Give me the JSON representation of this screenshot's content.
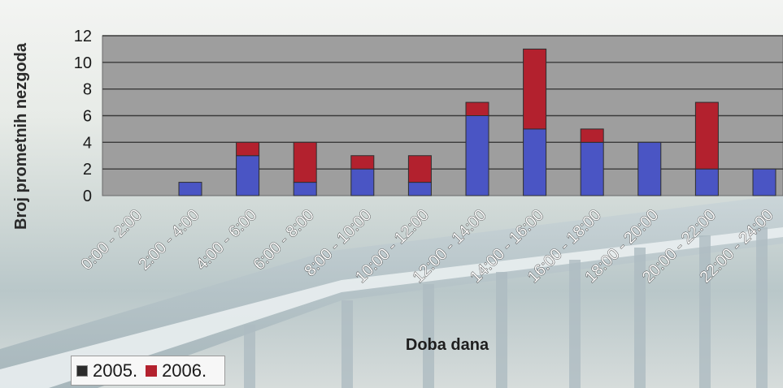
{
  "chart_data": {
    "type": "bar",
    "stacked": true,
    "categories": [
      "0:00 - 2:00",
      "2:00 - 4:00",
      "4:00 - 6:00",
      "6:00 - 8:00",
      "8:00 - 10:00",
      "10:00 - 12:00",
      "12:00 - 14:00",
      "14:00 - 16:00",
      "16:00 - 18:00",
      "18:00 - 20:00",
      "20:00 - 22:00",
      "22:00 - 24:00"
    ],
    "series": [
      {
        "name": "2005.",
        "values": [
          0,
          1,
          3,
          1,
          2,
          1,
          6,
          5,
          4,
          4,
          2,
          2
        ]
      },
      {
        "name": "2006.",
        "values": [
          0,
          0,
          1,
          3,
          1,
          2,
          1,
          6,
          1,
          0,
          5,
          0
        ]
      }
    ],
    "xlabel": "Doba dana",
    "ylabel": "Broj prometnih nezgoda",
    "ylim": [
      0,
      12
    ],
    "yticks": [
      "0",
      "2",
      "4",
      "6",
      "8",
      "10",
      "12"
    ],
    "grid": true,
    "legend_position": "bottom-left",
    "colors": {
      "2005.": "#4a55c4",
      "2006.": "#b3212e",
      "plot_area": "#9e9e9e",
      "grid": "#3a3a3a"
    }
  }
}
